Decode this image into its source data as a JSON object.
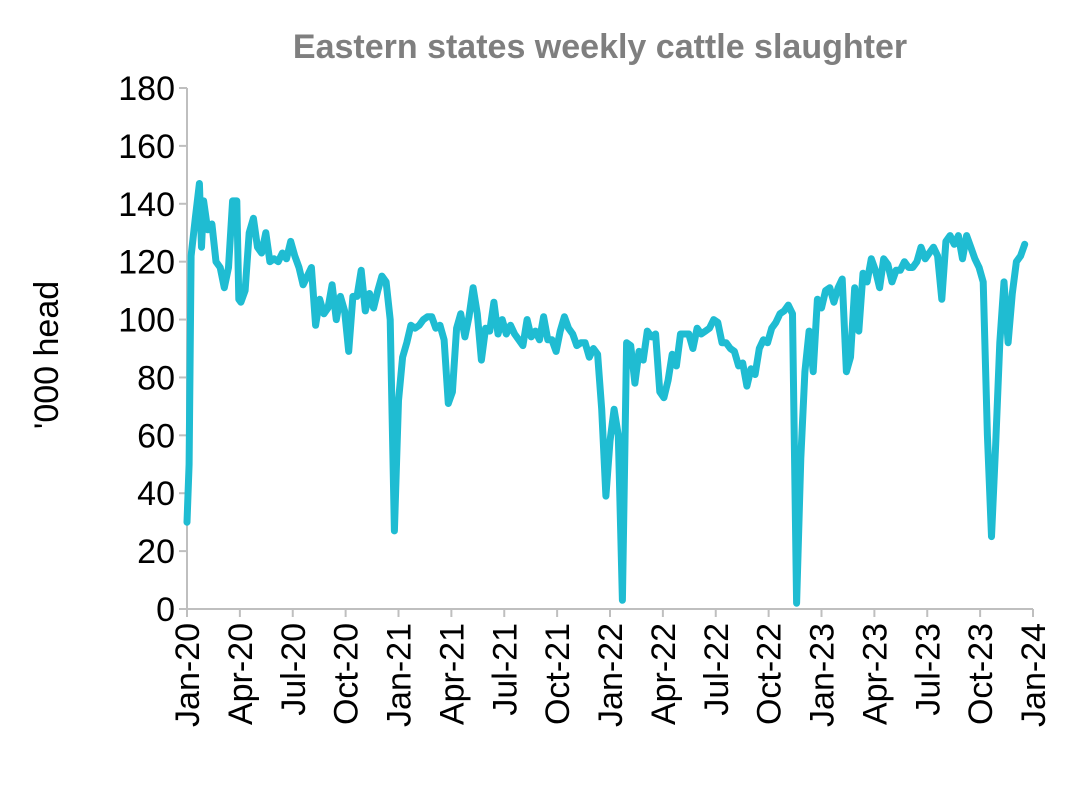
{
  "chart_data": {
    "type": "line",
    "title": "Eastern states weekly cattle slaughter",
    "ylabel": "'000 head",
    "xlabel": "",
    "ylim": [
      0,
      180
    ],
    "yticks": [
      0,
      20,
      40,
      60,
      80,
      100,
      120,
      140,
      160,
      180
    ],
    "xticks": [
      "Jan-20",
      "Apr-20",
      "Jul-20",
      "Oct-20",
      "Jan-21",
      "Apr-21",
      "Jul-21",
      "Oct-21",
      "Jan-22",
      "Apr-22",
      "Jul-22",
      "Oct-22",
      "Jan-23",
      "Apr-23",
      "Jul-23",
      "Oct-23",
      "Jan-24"
    ],
    "x_unit": "weeks since Jan-20",
    "grid": false,
    "legend": "none",
    "series": [
      {
        "color": "#1fbcd2",
        "points": [
          [
            0,
            30
          ],
          [
            0.5,
            50
          ],
          [
            1,
            122
          ],
          [
            2,
            135
          ],
          [
            3,
            147
          ],
          [
            3.5,
            125
          ],
          [
            4,
            141
          ],
          [
            5,
            131
          ],
          [
            6,
            133
          ],
          [
            7,
            120
          ],
          [
            8,
            118
          ],
          [
            9,
            111
          ],
          [
            10,
            118
          ],
          [
            11,
            141
          ],
          [
            12,
            141
          ],
          [
            12.5,
            107
          ],
          [
            13,
            106
          ],
          [
            14,
            110
          ],
          [
            15,
            130
          ],
          [
            16,
            135
          ],
          [
            17,
            125
          ],
          [
            18,
            123
          ],
          [
            19,
            130
          ],
          [
            20,
            120
          ],
          [
            21,
            121
          ],
          [
            22,
            120
          ],
          [
            23,
            123
          ],
          [
            24,
            121
          ],
          [
            25,
            127
          ],
          [
            26,
            122
          ],
          [
            27,
            118
          ],
          [
            28,
            112
          ],
          [
            29,
            115
          ],
          [
            30,
            118
          ],
          [
            31,
            98
          ],
          [
            32,
            107
          ],
          [
            33,
            102
          ],
          [
            34,
            104
          ],
          [
            35,
            112
          ],
          [
            36,
            100
          ],
          [
            37,
            108
          ],
          [
            38,
            103
          ],
          [
            39,
            89
          ],
          [
            40,
            108
          ],
          [
            41,
            108
          ],
          [
            42,
            117
          ],
          [
            43,
            103
          ],
          [
            44,
            109
          ],
          [
            45,
            104
          ],
          [
            46,
            110
          ],
          [
            47,
            115
          ],
          [
            48,
            113
          ],
          [
            49,
            100
          ],
          [
            50,
            27
          ],
          [
            51,
            72
          ],
          [
            52,
            87
          ],
          [
            53,
            92
          ],
          [
            54,
            98
          ],
          [
            55,
            97
          ],
          [
            56,
            98
          ],
          [
            57,
            100
          ],
          [
            58,
            101
          ],
          [
            59,
            101
          ],
          [
            60,
            97
          ],
          [
            61,
            98
          ],
          [
            62,
            93
          ],
          [
            63,
            71
          ],
          [
            64,
            75
          ],
          [
            65,
            97
          ],
          [
            66,
            102
          ],
          [
            67,
            94
          ],
          [
            68,
            101
          ],
          [
            69,
            111
          ],
          [
            70,
            102
          ],
          [
            71,
            86
          ],
          [
            72,
            97
          ],
          [
            73,
            96
          ],
          [
            74,
            106
          ],
          [
            75,
            95
          ],
          [
            76,
            100
          ],
          [
            77,
            95
          ],
          [
            78,
            98
          ],
          [
            79,
            95
          ],
          [
            80,
            93
          ],
          [
            81,
            91
          ],
          [
            82,
            100
          ],
          [
            83,
            94
          ],
          [
            84,
            96
          ],
          [
            85,
            93
          ],
          [
            86,
            101
          ],
          [
            87,
            93
          ],
          [
            88,
            93
          ],
          [
            89,
            89
          ],
          [
            90,
            96
          ],
          [
            91,
            101
          ],
          [
            92,
            97
          ],
          [
            93,
            95
          ],
          [
            94,
            91
          ],
          [
            95,
            92
          ],
          [
            96,
            92
          ],
          [
            97,
            87
          ],
          [
            98,
            90
          ],
          [
            99,
            88
          ],
          [
            100,
            69
          ],
          [
            101,
            39
          ],
          [
            102,
            58
          ],
          [
            103,
            69
          ],
          [
            104,
            60
          ],
          [
            105,
            3
          ],
          [
            106,
            92
          ],
          [
            107,
            91
          ],
          [
            108,
            78
          ],
          [
            109,
            89
          ],
          [
            110,
            86
          ],
          [
            111,
            96
          ],
          [
            112,
            94
          ],
          [
            113,
            95
          ],
          [
            114,
            75
          ],
          [
            115,
            73
          ],
          [
            116,
            79
          ],
          [
            117,
            88
          ],
          [
            118,
            84
          ],
          [
            119,
            95
          ],
          [
            120,
            95
          ],
          [
            121,
            95
          ],
          [
            122,
            90
          ],
          [
            123,
            97
          ],
          [
            124,
            95
          ],
          [
            125,
            96
          ],
          [
            126,
            97
          ],
          [
            127,
            100
          ],
          [
            128,
            99
          ],
          [
            129,
            92
          ],
          [
            130,
            92
          ],
          [
            131,
            90
          ],
          [
            132,
            89
          ],
          [
            133,
            84
          ],
          [
            134,
            85
          ],
          [
            135,
            77
          ],
          [
            136,
            83
          ],
          [
            137,
            81
          ],
          [
            138,
            90
          ],
          [
            139,
            93
          ],
          [
            140,
            92
          ],
          [
            141,
            97
          ],
          [
            142,
            99
          ],
          [
            143,
            102
          ],
          [
            144,
            103
          ],
          [
            145,
            105
          ],
          [
            146,
            102
          ],
          [
            147,
            2
          ],
          [
            148,
            52
          ],
          [
            149,
            82
          ],
          [
            150,
            96
          ],
          [
            151,
            82
          ],
          [
            152,
            107
          ],
          [
            153,
            104
          ],
          [
            154,
            110
          ],
          [
            155,
            111
          ],
          [
            156,
            106
          ],
          [
            157,
            111
          ],
          [
            158,
            114
          ],
          [
            159,
            82
          ],
          [
            160,
            87
          ],
          [
            161,
            111
          ],
          [
            162,
            96
          ],
          [
            163,
            116
          ],
          [
            164,
            113
          ],
          [
            165,
            121
          ],
          [
            166,
            117
          ],
          [
            167,
            111
          ],
          [
            168,
            121
          ],
          [
            169,
            119
          ],
          [
            170,
            113
          ],
          [
            171,
            117
          ],
          [
            172,
            117
          ],
          [
            173,
            120
          ],
          [
            174,
            118
          ],
          [
            175,
            118
          ],
          [
            176,
            120
          ],
          [
            177,
            125
          ],
          [
            178,
            121
          ],
          [
            179,
            123
          ],
          [
            180,
            125
          ],
          [
            181,
            122
          ],
          [
            182,
            107
          ],
          [
            183,
            127
          ],
          [
            184,
            129
          ],
          [
            185,
            126
          ],
          [
            186,
            129
          ],
          [
            187,
            121
          ],
          [
            188,
            129
          ],
          [
            189,
            125
          ],
          [
            190,
            121
          ],
          [
            191,
            118
          ],
          [
            192,
            113
          ],
          [
            193,
            60
          ],
          [
            194,
            25
          ],
          [
            195,
            57
          ],
          [
            196,
            92
          ],
          [
            197,
            113
          ],
          [
            198,
            92
          ],
          [
            199,
            109
          ],
          [
            200,
            120
          ],
          [
            201,
            122
          ],
          [
            202,
            126
          ]
        ]
      }
    ]
  }
}
